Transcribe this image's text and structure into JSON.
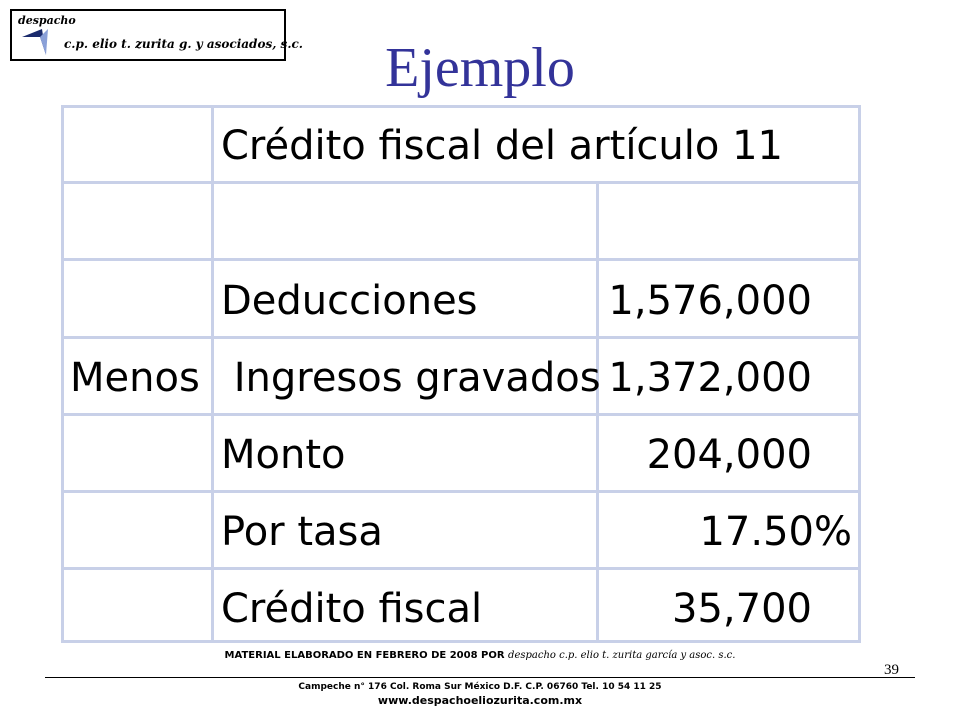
{
  "logo": {
    "word": "despacho",
    "tagline": "c.p. elio t. zurita g. y asociados, s.c."
  },
  "title": "Ejemplo",
  "table": {
    "header": "Crédito fiscal del artículo 11",
    "rows": [
      {
        "prefix": "",
        "label": "Deducciones",
        "value": "1,576,000"
      },
      {
        "prefix": "Menos",
        "label": " Ingresos gravados",
        "value": "1,372,000"
      },
      {
        "prefix": "",
        "label": "Monto",
        "value": "204,000"
      },
      {
        "prefix": "",
        "label": "Por tasa",
        "value": "17.50%"
      },
      {
        "prefix": "",
        "label": "Crédito fiscal",
        "value": "35,700"
      }
    ]
  },
  "footer": {
    "material_prefix": "MATERIAL ELABORADO EN FEBRERO DE 2008 POR ",
    "material_author": "despacho c.p. elio t.  zurita garcía y asoc.  s.c.",
    "page_number": "39",
    "address": "Campeche  n° 176  Col. Roma Sur México  D.F. C.P.  06760  Tel.  10  54  11  25",
    "website": "www.despachoeliozurita.com.mx"
  },
  "colors": {
    "title": "#333399",
    "table_border": "#c8d0e8"
  }
}
